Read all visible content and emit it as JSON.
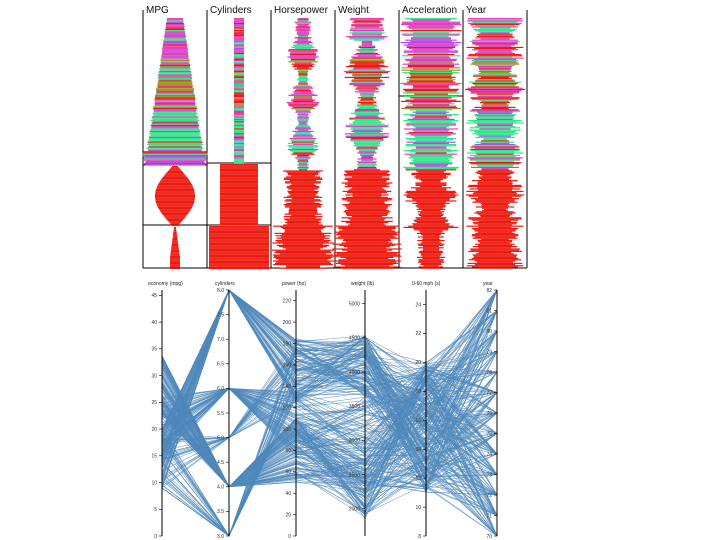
{
  "chart_data": [
    {
      "type": "parallel-sets",
      "columns": [
        "MPG",
        "Cylinders",
        "Horsepower",
        "Weight",
        "Acceleration",
        "Year"
      ],
      "colors": {
        "red": "#ee1a10",
        "green": "#2ee88a",
        "magenta": "#e33fbe",
        "violet": "#b14cf0",
        "olive": "#9a9a2a"
      },
      "grid": false
    },
    {
      "type": "parallel-coordinates",
      "line_color": "#4f88bb",
      "axes": [
        {
          "title": "economy (mpg)",
          "ticks": [
            "0",
            "5",
            "10",
            "15",
            "20",
            "25",
            "30",
            "35",
            "40",
            "45"
          ],
          "range": [
            0,
            46
          ]
        },
        {
          "title": "cylinders",
          "ticks": [
            "3.0",
            "3.5",
            "4.0",
            "4.5",
            "5.0",
            "5.5",
            "6.0",
            "6.5",
            "7.0",
            "7.5",
            "8.0"
          ],
          "range": [
            3,
            8
          ]
        },
        {
          "title": "power (hp)",
          "ticks": [
            "0",
            "20",
            "40",
            "60",
            "80",
            "100",
            "120",
            "140",
            "160",
            "180",
            "200",
            "220"
          ],
          "range": [
            0,
            230
          ]
        },
        {
          "title": "weight (lb)",
          "ticks": [
            "2000",
            "2500",
            "3000",
            "3500",
            "4000",
            "4500",
            "5000"
          ],
          "range": [
            1600,
            5200
          ]
        },
        {
          "title": "0-60 mph (s)",
          "ticks": [
            "8",
            "10",
            "12",
            "14",
            "16",
            "18",
            "20",
            "22",
            "24"
          ],
          "range": [
            8,
            25
          ]
        },
        {
          "title": "year",
          "ticks": [
            "70",
            "71",
            "72",
            "73",
            "74",
            "75",
            "76",
            "77",
            "78",
            "79",
            "80",
            "81",
            "82"
          ],
          "range": [
            70,
            82
          ]
        }
      ],
      "grid": false
    }
  ]
}
